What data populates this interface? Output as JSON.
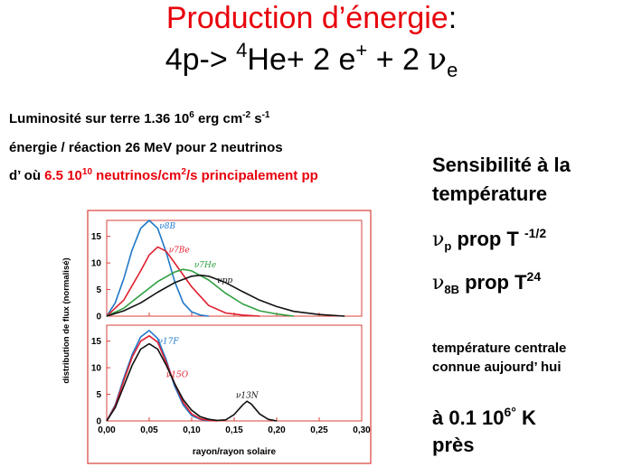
{
  "title": {
    "line1_red": "Production d’énergie",
    "line1_rest": ":",
    "line2": {
      "lhs": "4p-> ",
      "he_sup": "4",
      "he": "He+  2 e",
      "eplus_sup": "+",
      "mid": " + 2 ",
      "nu": "ν",
      "nu_sub": "e"
    }
  },
  "info": {
    "lum": {
      "a": "Luminosité sur terre 1.36 10",
      "s1": "6",
      "b": " erg cm",
      "s2": "-2",
      "c": " s",
      "s3": "-1"
    },
    "energy": "énergie / réaction 26 MeV pour 2 neutrinos",
    "flux": {
      "a": "d’ où ",
      "b": "6.5 10",
      "s1": "10",
      "c": " neutrinos/cm",
      "s2": "2",
      "d": "/s   principalement pp"
    }
  },
  "right": {
    "sens1": "Sensibilité à la",
    "sens2": "température",
    "nu_symbol": "ν",
    "p_sub": "p",
    "p_text": "  prop T ",
    "p_exp": "-1/2",
    "b_sub": "8B",
    "b_text": " prop T",
    "b_exp": "24",
    "tc1": "température centrale",
    "tc2": "connue aujourd’ hui",
    "val": "à 0.1 10",
    "val_sup": "6°",
    "val_k": "  K",
    "pres": "près"
  },
  "colors": {
    "title_red": "#e8000b",
    "frame_red": "#d8403a",
    "nu8B": "#1f78c8",
    "nu7Be": "#e02030",
    "nu7He": "#2fa040",
    "nupp": "#111111",
    "nu13N": "#111111",
    "nu15O": "#e02030",
    "nu17F": "#1f78c8"
  },
  "chart_data": {
    "type": "line",
    "xlabel": "rayon/rayon solaire",
    "ylabel": "distribution de flux (normalisé)",
    "xlim": [
      0,
      0.3
    ],
    "x_ticks": [
      "0,00",
      "0,05",
      "0,10",
      "0,15",
      "0,20",
      "0,25",
      "0,30"
    ],
    "panels": [
      {
        "ylim": [
          0,
          18
        ],
        "y_ticks": [
          "0",
          "5",
          "10",
          "15"
        ],
        "series": [
          {
            "name": "ν8B",
            "color": "#1f78c8",
            "x": [
              0,
              0.01,
              0.02,
              0.03,
              0.04,
              0.05,
              0.06,
              0.07,
              0.08,
              0.09,
              0.1,
              0.11,
              0.12
            ],
            "y": [
              0,
              2.5,
              7,
              12.5,
              16.5,
              18,
              16.5,
              12,
              6.5,
              2.5,
              0.8,
              0.2,
              0
            ]
          },
          {
            "name": "ν7Be",
            "color": "#e02030",
            "x": [
              0,
              0.02,
              0.04,
              0.05,
              0.06,
              0.07,
              0.08,
              0.1,
              0.12,
              0.14,
              0.16,
              0.18
            ],
            "y": [
              0,
              3,
              8.5,
              11.5,
              13,
              12.2,
              10,
              5.5,
              2,
              0.6,
              0.2,
              0
            ]
          },
          {
            "name": "ν7He",
            "color": "#2fa040",
            "x": [
              0,
              0.02,
              0.04,
              0.06,
              0.08,
              0.09,
              0.1,
              0.12,
              0.14,
              0.16,
              0.18,
              0.2,
              0.22
            ],
            "y": [
              0,
              1.5,
              4,
              6.5,
              8.3,
              8.8,
              8.5,
              6.8,
              4.3,
              2.3,
              1,
              0.4,
              0
            ]
          },
          {
            "name": "νpp",
            "color": "#111111",
            "x": [
              0,
              0.02,
              0.04,
              0.06,
              0.08,
              0.1,
              0.11,
              0.12,
              0.14,
              0.16,
              0.18,
              0.2,
              0.22,
              0.25,
              0.28
            ],
            "y": [
              0,
              1,
              2.5,
              4.5,
              6.3,
              7.5,
              7.7,
              7.5,
              6.3,
              4.6,
              3,
              1.8,
              0.9,
              0.3,
              0
            ]
          }
        ]
      },
      {
        "ylim": [
          0,
          18
        ],
        "y_ticks": [
          "0",
          "5",
          "10",
          "15"
        ],
        "series": [
          {
            "name": "ν17F",
            "color": "#1f78c8",
            "x": [
              0,
              0.01,
              0.02,
              0.03,
              0.04,
              0.05,
              0.06,
              0.07,
              0.08,
              0.09,
              0.1,
              0.11,
              0.12
            ],
            "y": [
              0,
              3,
              8,
              12.5,
              15.8,
              17,
              15.5,
              11.5,
              6.5,
              3,
              1,
              0.3,
              0
            ]
          },
          {
            "name": "ν15O",
            "color": "#e02030",
            "x": [
              0,
              0.01,
              0.02,
              0.03,
              0.04,
              0.05,
              0.06,
              0.07,
              0.08,
              0.09,
              0.1,
              0.11,
              0.12,
              0.13
            ],
            "y": [
              0,
              2.8,
              7.5,
              12,
              15,
              16,
              14.8,
              11,
              7,
              3.5,
              1.3,
              0.4,
              0.1,
              0
            ]
          },
          {
            "name": "ν13N",
            "color": "#111111",
            "x": [
              0,
              0.01,
              0.02,
              0.03,
              0.04,
              0.05,
              0.06,
              0.07,
              0.08,
              0.09,
              0.1,
              0.11,
              0.12,
              0.13,
              0.14,
              0.15,
              0.16,
              0.165,
              0.17,
              0.18,
              0.19,
              0.2
            ],
            "y": [
              0,
              2.5,
              6.5,
              10.5,
              13.5,
              14.5,
              13.5,
              10.5,
              7,
              4,
              2,
              0.8,
              0.3,
              0.1,
              0.2,
              1.2,
              3,
              3.7,
              3.2,
              1.3,
              0.3,
              0
            ]
          }
        ]
      }
    ],
    "labels": [
      "ν8B",
      "ν7Be",
      "ν7He",
      "νpp",
      "ν17F",
      "ν15O",
      "ν13N"
    ]
  }
}
